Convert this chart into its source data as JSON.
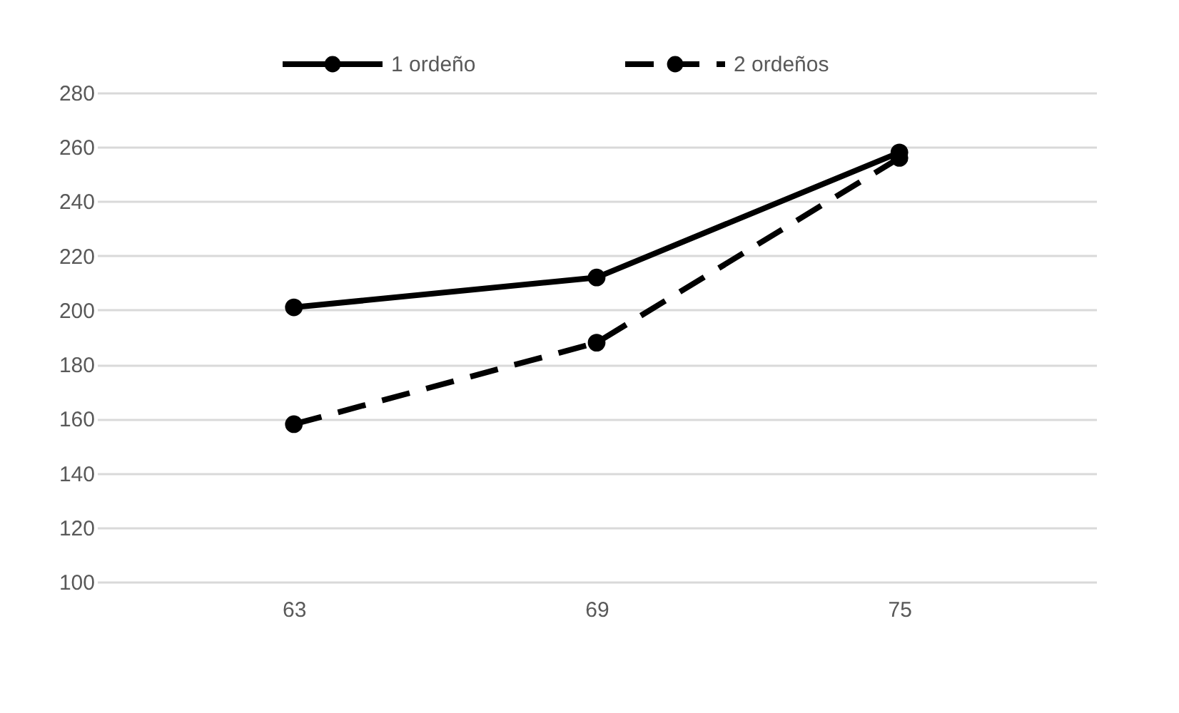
{
  "chart_data": {
    "type": "line",
    "categories": [
      "63",
      "69",
      "75"
    ],
    "series": [
      {
        "name": "1 ordeño",
        "color": "#000000",
        "line_style": "solid",
        "values": [
          201,
          212,
          258
        ]
      },
      {
        "name": "2 ordeños",
        "color": "#000000",
        "line_style": "dashed",
        "values": [
          158,
          188,
          256
        ]
      }
    ],
    "ylim": [
      100,
      280
    ],
    "yticks": [
      100,
      120,
      140,
      160,
      180,
      200,
      220,
      240,
      260,
      280
    ],
    "grid": "y",
    "legend": "top",
    "marker": "circle"
  }
}
